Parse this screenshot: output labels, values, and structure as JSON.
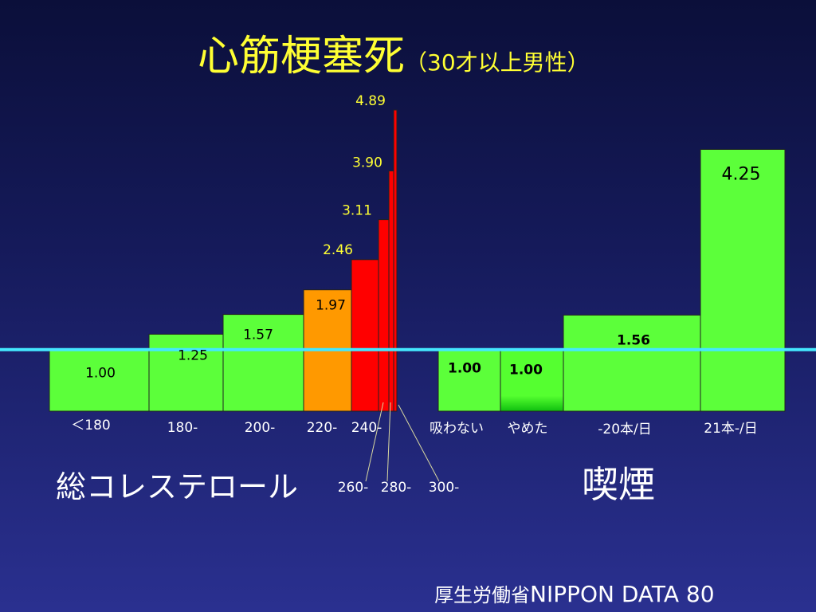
{
  "title": {
    "main": "心筋梗塞死",
    "sub": "（30才以上男性）"
  },
  "group_labels": {
    "cholesterol": "総コレステロール",
    "smoking": "喫煙"
  },
  "source": {
    "prefix": "厚生労働省",
    "name": "NIPPON DATA 80"
  },
  "colors": {
    "base": "#5cff3a",
    "mid": "#ff9900",
    "high": "#ff0000",
    "reference_line": "#44e8ff",
    "value_label": "#ffff33"
  },
  "chart_data": [
    {
      "type": "bar",
      "group": "総コレステロール",
      "categories": [
        "＜180",
        "180-",
        "200-",
        "220-",
        "240-",
        "260-",
        "280-",
        "300-"
      ],
      "values": [
        1.0,
        1.25,
        1.57,
        1.97,
        2.46,
        3.11,
        3.9,
        4.89
      ],
      "value_labels": [
        "1.00",
        "1.25",
        "1.57",
        "1.97",
        "2.46",
        "3.11",
        "3.90",
        "4.89"
      ],
      "reference_line": 1.0
    },
    {
      "type": "bar",
      "group": "喫煙",
      "categories": [
        "吸わない",
        "やめた",
        "-20本/日",
        "21本-/日"
      ],
      "values": [
        1.0,
        1.0,
        1.56,
        4.25
      ],
      "value_labels": [
        "1.00",
        "1.00",
        "1.56",
        "4.25"
      ],
      "reference_line": 1.0
    }
  ]
}
